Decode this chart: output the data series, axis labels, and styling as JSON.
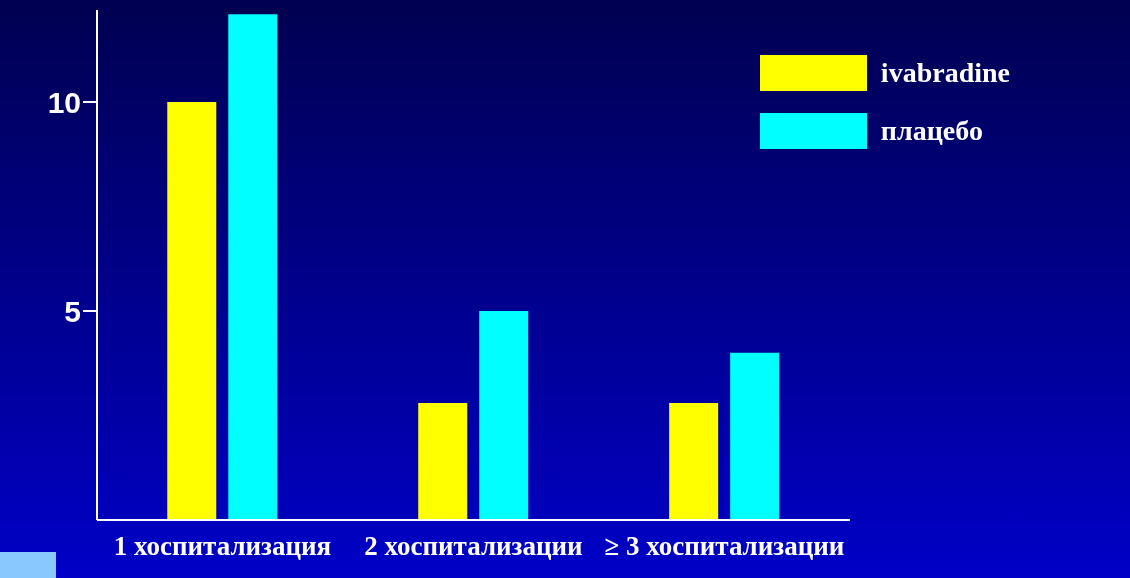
{
  "chart_data": {
    "type": "bar",
    "categories": [
      "1 хоспитализация",
      "2 хоспитализации",
      "≥ 3 хоспитализации"
    ],
    "series": [
      {
        "name": "ivabradine",
        "color": "#ffff00",
        "values": [
          10,
          2.8,
          2.8
        ]
      },
      {
        "name": "плацебо",
        "color": "#00ffff",
        "values": [
          12.1,
          5,
          4
        ]
      }
    ],
    "ylim": [
      0,
      12.2
    ],
    "yticks": [
      5,
      10
    ],
    "grid": false,
    "legend": "top right"
  }
}
